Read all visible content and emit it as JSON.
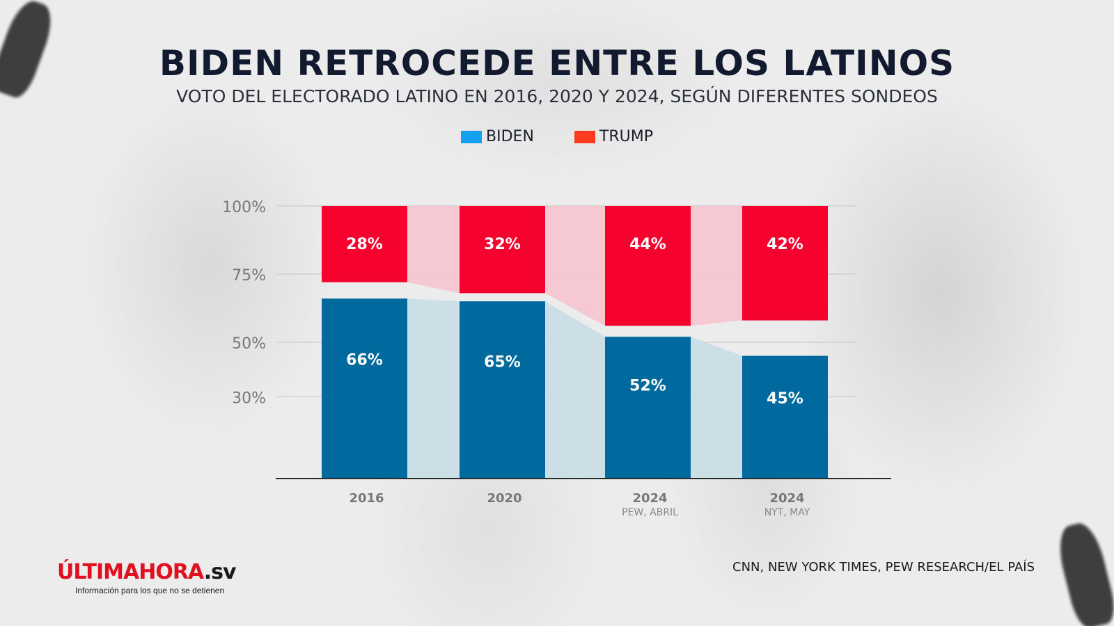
{
  "header": {
    "title": "BIDEN RETROCEDE ENTRE LOS LATINOS",
    "subtitle": "VOTO DEL ELECTORADO LATINO EN 2016, 2020 Y 2024, SEGÚN DIFERENTES SONDEOS"
  },
  "legend": {
    "biden": "BIDEN",
    "trump": "TRUMP"
  },
  "colors": {
    "biden_legend": "#14a0ef",
    "trump_legend": "#ff3b1f",
    "biden_bar": "#006a9e",
    "trump_bar": "#f5022f",
    "biden_band": "#c9dde6",
    "trump_band": "#f6c4cf"
  },
  "source": "CNN, NEW YORK TIMES, PEW RESEARCH/EL PAÍS",
  "logo": {
    "accent": "ÚLTIMA",
    "name": "HORA",
    "suffix": ".sv",
    "tagline": "Información para los que no se detienen"
  },
  "chart_data": {
    "type": "bar",
    "stacked": false,
    "categories": [
      "2016",
      "2020",
      "2024",
      "2024"
    ],
    "category_sublabels": [
      "",
      "",
      "PEW, ABRIL",
      "NYT, MAY"
    ],
    "series": [
      {
        "name": "BIDEN",
        "values": [
          66,
          65,
          52,
          45
        ],
        "labels": [
          "66%",
          "65%",
          "52%",
          "45%"
        ],
        "anchor": "bottom"
      },
      {
        "name": "TRUMP",
        "values": [
          28,
          32,
          44,
          42
        ],
        "labels": [
          "28%",
          "32%",
          "44%",
          "42%"
        ],
        "anchor": "top"
      }
    ],
    "y_ticks": [
      {
        "value": 100,
        "label": "100%"
      },
      {
        "value": 75,
        "label": "75%"
      },
      {
        "value": 50,
        "label": "50%"
      },
      {
        "value": 30,
        "label": "30%"
      }
    ],
    "ylim": [
      0,
      100
    ],
    "grid": true,
    "legend_position": "top-center",
    "connecting_bands": true
  }
}
